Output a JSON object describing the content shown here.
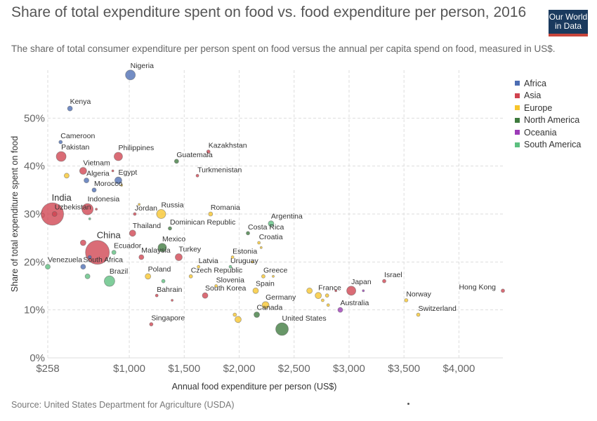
{
  "header": {
    "title": "Share of total expenditure spent on food vs. food expenditure per person, 2016",
    "subtitle": "The share of total consumer expenditure per person spent on food versus the annual per capita spend on food, measured in US$.",
    "logo_line1": "Our World",
    "logo_line2": "in Data"
  },
  "footer": {
    "source": "Source: United States Department for Agriculture (USDA)"
  },
  "colors": {
    "Africa": "#4c6db3",
    "Asia": "#d0434f",
    "Europe": "#f7c52b",
    "North America": "#3e7a3e",
    "Oceania": "#9c3bb7",
    "South America": "#5cbf7f"
  },
  "chart_data": {
    "type": "scatter",
    "title": "Share of total expenditure spent on food vs. food expenditure per person, 2016",
    "xlabel": "Annual food expenditure per person (US$)",
    "ylabel": "Share of total expenditure spent on food",
    "xlim": [
      258,
      4400
    ],
    "ylim": [
      0,
      60
    ],
    "x_ticks": [
      258,
      1000,
      1500,
      2000,
      2500,
      3000,
      3500,
      4000
    ],
    "x_tick_labels": [
      "$258",
      "$1,000",
      "$1,500",
      "$2,000",
      "$2,500",
      "$3,000",
      "$3,500",
      "$4,000"
    ],
    "y_ticks": [
      0,
      10,
      20,
      30,
      40,
      50
    ],
    "y_tick_labels": [
      "0%",
      "10%",
      "20%",
      "30%",
      "40%",
      "50%"
    ],
    "grid": true,
    "legend_position": "right",
    "legend": [
      "Africa",
      "Asia",
      "Europe",
      "North America",
      "Oceania",
      "South America"
    ],
    "points": [
      {
        "label": "Nigeria",
        "region": "Africa",
        "x": 1010,
        "y": 59,
        "r": 7
      },
      {
        "label": "Kenya",
        "region": "Africa",
        "x": 460,
        "y": 52,
        "r": 3.5
      },
      {
        "label": "Cameroon",
        "region": "Africa",
        "x": 375,
        "y": 45,
        "r": 2.5
      },
      {
        "label": "Pakistan",
        "region": "Asia",
        "x": 380,
        "y": 42,
        "r": 7
      },
      {
        "label": "Philippines",
        "region": "Asia",
        "x": 900,
        "y": 42,
        "r": 6
      },
      {
        "label": "Kazakhstan",
        "region": "Asia",
        "x": 1720,
        "y": 43,
        "r": 2.5
      },
      {
        "label": "Guatemala",
        "region": "North America",
        "x": 1430,
        "y": 41,
        "r": 3
      },
      {
        "label": "Vietnam",
        "region": "Asia",
        "x": 580,
        "y": 39,
        "r": 5
      },
      {
        "label": "Algeria",
        "region": "Africa",
        "x": 610,
        "y": 37,
        "r": 3.5
      },
      {
        "label": "Egypt",
        "region": "Africa",
        "x": 900,
        "y": 37,
        "r": 5
      },
      {
        "label": "Turkmenistan",
        "region": "Asia",
        "x": 1620,
        "y": 38,
        "r": 2
      },
      {
        "label": "Morocco",
        "region": "Africa",
        "x": 680,
        "y": 35,
        "r": 3
      },
      {
        "label": "India",
        "region": "Asia",
        "x": 300,
        "y": 30,
        "r": 16
      },
      {
        "label": "Uzbekistan",
        "region": "Asia",
        "x": 320,
        "y": 30,
        "r": 3.5
      },
      {
        "label": "Indonesia",
        "region": "Asia",
        "x": 620,
        "y": 31,
        "r": 8
      },
      {
        "label": "Jordan",
        "region": "Asia",
        "x": 1050,
        "y": 30,
        "r": 2
      },
      {
        "label": "Russia",
        "region": "Europe",
        "x": 1290,
        "y": 30,
        "r": 6.5
      },
      {
        "label": "Romania",
        "region": "Europe",
        "x": 1740,
        "y": 30,
        "r": 3
      },
      {
        "label": "Argentina",
        "region": "South America",
        "x": 2290,
        "y": 28,
        "r": 4
      },
      {
        "label": "Dominican Republic",
        "region": "North America",
        "x": 1370,
        "y": 27,
        "r": 2.5
      },
      {
        "label": "Costa Rica",
        "region": "North America",
        "x": 2080,
        "y": 26,
        "r": 2.5
      },
      {
        "label": "Thailand",
        "region": "Asia",
        "x": 1030,
        "y": 26,
        "r": 4.5
      },
      {
        "label": "Croatia",
        "region": "Europe",
        "x": 2180,
        "y": 24,
        "r": 2
      },
      {
        "label": "China",
        "region": "Asia",
        "x": 710,
        "y": 22,
        "r": 17
      },
      {
        "label": "Ecuador",
        "region": "South America",
        "x": 860,
        "y": 22,
        "r": 3
      },
      {
        "label": "Mexico",
        "region": "North America",
        "x": 1300,
        "y": 23,
        "r": 6
      },
      {
        "label": "Malaysia",
        "region": "Asia",
        "x": 1110,
        "y": 21,
        "r": 3.5
      },
      {
        "label": "Turkey",
        "region": "Asia",
        "x": 1450,
        "y": 21,
        "r": 5
      },
      {
        "label": "Estonia",
        "region": "Europe",
        "x": 1940,
        "y": 21,
        "r": 2
      },
      {
        "label": "Venezuela",
        "region": "South America",
        "x": 258,
        "y": 19,
        "r": 3.5
      },
      {
        "label": "South Africa",
        "region": "Africa",
        "x": 580,
        "y": 19,
        "r": 3.5
      },
      {
        "label": "Latvia",
        "region": "Europe",
        "x": 1630,
        "y": 19,
        "r": 2
      },
      {
        "label": "Uruguay",
        "region": "South America",
        "x": 1920,
        "y": 19,
        "r": 2
      },
      {
        "label": "Brazil",
        "region": "South America",
        "x": 820,
        "y": 16,
        "r": 7.5
      },
      {
        "label": "Poland",
        "region": "Europe",
        "x": 1170,
        "y": 17,
        "r": 4
      },
      {
        "label": "Czech Republic",
        "region": "Europe",
        "x": 1560,
        "y": 17,
        "r": 2.5
      },
      {
        "label": "Greece",
        "region": "Europe",
        "x": 2220,
        "y": 17,
        "r": 2.5
      },
      {
        "label": "Slovenia",
        "region": "Europe",
        "x": 1790,
        "y": 15,
        "r": 2
      },
      {
        "label": "Spain",
        "region": "Europe",
        "x": 2150,
        "y": 14,
        "r": 4
      },
      {
        "label": "South Korea",
        "region": "Asia",
        "x": 1690,
        "y": 13,
        "r": 4
      },
      {
        "label": "Bahrain",
        "region": "Asia",
        "x": 1250,
        "y": 13,
        "r": 2
      },
      {
        "label": "France",
        "region": "Europe",
        "x": 2720,
        "y": 13,
        "r": 4.5
      },
      {
        "label": "Japan",
        "region": "Asia",
        "x": 3020,
        "y": 14,
        "r": 6.5
      },
      {
        "label": "Israel",
        "region": "Asia",
        "x": 3320,
        "y": 16,
        "r": 2.5
      },
      {
        "label": "Hong Kong",
        "region": "Asia",
        "x": 4400,
        "y": 14,
        "r": 2.5
      },
      {
        "label": "Germany",
        "region": "Europe",
        "x": 2240,
        "y": 11,
        "r": 5
      },
      {
        "label": "Norway",
        "region": "Europe",
        "x": 3520,
        "y": 12,
        "r": 2.5
      },
      {
        "label": "Australia",
        "region": "Oceania",
        "x": 2920,
        "y": 10,
        "r": 3.5
      },
      {
        "label": "Canada",
        "region": "North America",
        "x": 2160,
        "y": 9,
        "r": 4
      },
      {
        "label": "Switzerland",
        "region": "Europe",
        "x": 3630,
        "y": 9,
        "r": 2.5
      },
      {
        "label": "United States",
        "region": "North America",
        "x": 2390,
        "y": 6,
        "r": 9
      },
      {
        "label": "Singapore",
        "region": "Asia",
        "x": 1200,
        "y": 7,
        "r": 2.5
      },
      {
        "label": "",
        "region": "Africa",
        "x": 640,
        "y": 21,
        "r": 2.5
      },
      {
        "label": "",
        "region": "Asia",
        "x": 580,
        "y": 24,
        "r": 4
      },
      {
        "label": "",
        "region": "Asia",
        "x": 850,
        "y": 39,
        "r": 1.5
      },
      {
        "label": "",
        "region": "Asia",
        "x": 700,
        "y": 31,
        "r": 1.5
      },
      {
        "label": "",
        "region": "Asia",
        "x": 1390,
        "y": 12,
        "r": 1.5
      },
      {
        "label": "",
        "region": "Asia",
        "x": 2880,
        "y": 14,
        "r": 1.5
      },
      {
        "label": "",
        "region": "Oceania",
        "x": 3130,
        "y": 14,
        "r": 1.5
      },
      {
        "label": "",
        "region": "Europe",
        "x": 430,
        "y": 38,
        "r": 3.5
      },
      {
        "label": "",
        "region": "Europe",
        "x": 930,
        "y": 36,
        "r": 1.5
      },
      {
        "label": "",
        "region": "Europe",
        "x": 1090,
        "y": 32,
        "r": 1.5
      },
      {
        "label": "",
        "region": "Europe",
        "x": 2200,
        "y": 23,
        "r": 1.5
      },
      {
        "label": "",
        "region": "Europe",
        "x": 1960,
        "y": 9,
        "r": 2.5
      },
      {
        "label": "",
        "region": "Europe",
        "x": 1990,
        "y": 8,
        "r": 4.5
      },
      {
        "label": "",
        "region": "Europe",
        "x": 2640,
        "y": 14,
        "r": 4
      },
      {
        "label": "",
        "region": "Europe",
        "x": 2800,
        "y": 13,
        "r": 2.5
      },
      {
        "label": "",
        "region": "Europe",
        "x": 2810,
        "y": 11,
        "r": 2
      },
      {
        "label": "",
        "region": "Europe",
        "x": 2760,
        "y": 12,
        "r": 2
      },
      {
        "label": "",
        "region": "Europe",
        "x": 2120,
        "y": 20,
        "r": 1.5
      },
      {
        "label": "",
        "region": "Europe",
        "x": 2310,
        "y": 17,
        "r": 1.5
      },
      {
        "label": "",
        "region": "South America",
        "x": 640,
        "y": 29,
        "r": 1.5
      },
      {
        "label": "",
        "region": "South America",
        "x": 620,
        "y": 17,
        "r": 3.5
      },
      {
        "label": "",
        "region": "South America",
        "x": 1310,
        "y": 16,
        "r": 2.5
      }
    ]
  }
}
